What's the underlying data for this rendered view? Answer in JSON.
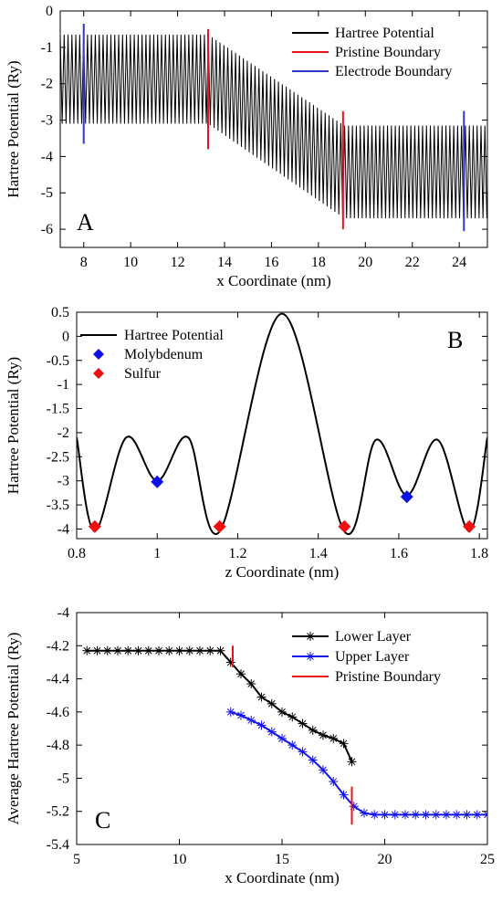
{
  "chart_data": [
    {
      "type": "line",
      "panel_label": "A",
      "xlabel": "x Coordinate (nm)",
      "ylabel": "Hartree Potential (Ry)",
      "xlim": [
        7,
        25.2
      ],
      "ylim": [
        -6.5,
        0
      ],
      "xticks": [
        8,
        10,
        12,
        14,
        16,
        18,
        20,
        22,
        24
      ],
      "xtick_labels": [
        "8",
        "10",
        "12",
        "14",
        "16",
        "18",
        "20",
        "22",
        "24"
      ],
      "yticks": [
        0,
        -1,
        -2,
        -3,
        -4,
        -5,
        -6
      ],
      "ytick_labels": [
        "0",
        "-1",
        "-2",
        "-3",
        "-4",
        "-5",
        "-6"
      ],
      "legend_position": "top-right",
      "series": [
        {
          "name": "Hartree Potential",
          "color": "#000000",
          "style": "oscillating",
          "period_nm": 0.166,
          "upper_envelope": {
            "x": [
              7,
              13.3,
              19.1,
              25.2
            ],
            "y": [
              -0.65,
              -0.65,
              -3.15,
              -3.15
            ]
          },
          "lower_envelope": {
            "x": [
              7,
              13.3,
              19.1,
              25.2
            ],
            "y": [
              -3.1,
              -3.1,
              -5.7,
              -5.7
            ]
          }
        },
        {
          "name": "Pristine Boundary",
          "color": "#e8141c",
          "style": "vlines",
          "lines": [
            {
              "x": 13.3,
              "y0": -3.8,
              "y1": -0.5
            },
            {
              "x": 19.05,
              "y0": -6.0,
              "y1": -2.75
            }
          ]
        },
        {
          "name": "Electrode Boundary",
          "color": "#2b3cc8",
          "style": "vlines",
          "lines": [
            {
              "x": 8.0,
              "y0": -3.65,
              "y1": -0.35
            },
            {
              "x": 24.2,
              "y0": -6.05,
              "y1": -2.75
            }
          ]
        }
      ]
    },
    {
      "type": "line",
      "panel_label": "B",
      "xlabel": "z Coordinate (nm)",
      "ylabel": "Hartree Potential (Ry)",
      "xlim": [
        0.8,
        1.82
      ],
      "ylim": [
        -4.2,
        0.5
      ],
      "xticks": [
        0.8,
        1,
        1.2,
        1.4,
        1.6,
        1.8
      ],
      "xtick_labels": [
        "0.8",
        "1",
        "1.2",
        "1.4",
        "1.6",
        "1.8"
      ],
      "yticks": [
        0.5,
        0,
        -0.5,
        -1,
        -1.5,
        -2,
        -2.5,
        -3,
        -3.5,
        -4
      ],
      "ytick_labels": [
        "0.5",
        "0",
        "-0.5",
        "-1",
        "-1.5",
        "-2",
        "-2.5",
        "-3",
        "-3.5",
        "-4"
      ],
      "legend_position": "top-left",
      "series": [
        {
          "name": "Hartree Potential",
          "color": "#000000",
          "style": "smooth-line",
          "x": [
            0.8,
            0.845,
            0.923,
            1.0,
            1.077,
            1.155,
            1.31,
            1.465,
            1.543,
            1.62,
            1.697,
            1.775,
            1.82
          ],
          "y": [
            -2.1,
            -4.05,
            -2.1,
            -3.0,
            -2.1,
            -4.05,
            0.47,
            -4.05,
            -2.15,
            -3.3,
            -2.15,
            -4.05,
            -2.1
          ]
        },
        {
          "name": "Molybdenum",
          "color": "#0d11e6",
          "style": "diamonds",
          "x": [
            1.0,
            1.62
          ],
          "y": [
            -3.02,
            -3.33
          ]
        },
        {
          "name": "Sulfur",
          "color": "#ee1010",
          "style": "diamonds",
          "x": [
            0.845,
            1.155,
            1.465,
            1.775
          ],
          "y": [
            -3.95,
            -3.95,
            -3.95,
            -3.95
          ]
        }
      ]
    },
    {
      "type": "line",
      "panel_label": "C",
      "xlabel": "x Coordinate (nm)",
      "ylabel": "Average Hartree Potential (Ry)",
      "xlim": [
        5,
        25
      ],
      "ylim": [
        -5.4,
        -4
      ],
      "xticks": [
        5,
        10,
        15,
        20,
        25
      ],
      "xtick_labels": [
        "5",
        "10",
        "15",
        "20",
        "25"
      ],
      "yticks": [
        -4,
        -4.2,
        -4.4,
        -4.6,
        -4.8,
        -5,
        -5.2,
        -5.4
      ],
      "ytick_labels": [
        "-4",
        "-4.2",
        "-4.4",
        "-4.6",
        "-4.8",
        "-5",
        "-5.2",
        "-5.4"
      ],
      "legend_position": "top-right",
      "series": [
        {
          "name": "Lower Layer",
          "color": "#000000",
          "marker": "asterisk",
          "x": [
            5.5,
            6.0,
            6.5,
            7.0,
            7.5,
            8.0,
            8.5,
            9.0,
            9.5,
            10.0,
            10.5,
            11.0,
            11.5,
            12.0,
            12.5,
            13.0,
            13.5,
            14.0,
            14.5,
            15.0,
            15.5,
            16.0,
            16.5,
            17.0,
            17.5,
            18.0,
            18.4
          ],
          "y": [
            -4.23,
            -4.23,
            -4.23,
            -4.23,
            -4.23,
            -4.23,
            -4.23,
            -4.23,
            -4.23,
            -4.23,
            -4.23,
            -4.23,
            -4.23,
            -4.23,
            -4.3,
            -4.37,
            -4.43,
            -4.51,
            -4.55,
            -4.6,
            -4.63,
            -4.67,
            -4.71,
            -4.74,
            -4.76,
            -4.79,
            -4.9
          ]
        },
        {
          "name": "Upper Layer",
          "color": "#1515ee",
          "marker": "asterisk",
          "x": [
            12.5,
            13.0,
            13.5,
            14.0,
            14.5,
            15.0,
            15.5,
            16.0,
            16.5,
            17.0,
            17.5,
            18.0,
            18.5,
            19.0,
            19.5,
            20.0,
            20.5,
            21.0,
            21.5,
            22.0,
            22.5,
            23.0,
            23.5,
            24.0,
            24.5,
            25.0
          ],
          "y": [
            -4.6,
            -4.62,
            -4.65,
            -4.68,
            -4.72,
            -4.76,
            -4.8,
            -4.84,
            -4.89,
            -4.95,
            -5.02,
            -5.1,
            -5.17,
            -5.21,
            -5.22,
            -5.22,
            -5.22,
            -5.22,
            -5.22,
            -5.22,
            -5.22,
            -5.22,
            -5.22,
            -5.22,
            -5.22,
            -5.22
          ]
        },
        {
          "name": "Pristine Boundary",
          "color": "#e8141c",
          "style": "vlines",
          "lines": [
            {
              "x": 12.6,
              "y0": -4.33,
              "y1": -4.2
            },
            {
              "x": 18.4,
              "y0": -5.28,
              "y1": -5.05
            }
          ]
        }
      ]
    }
  ]
}
